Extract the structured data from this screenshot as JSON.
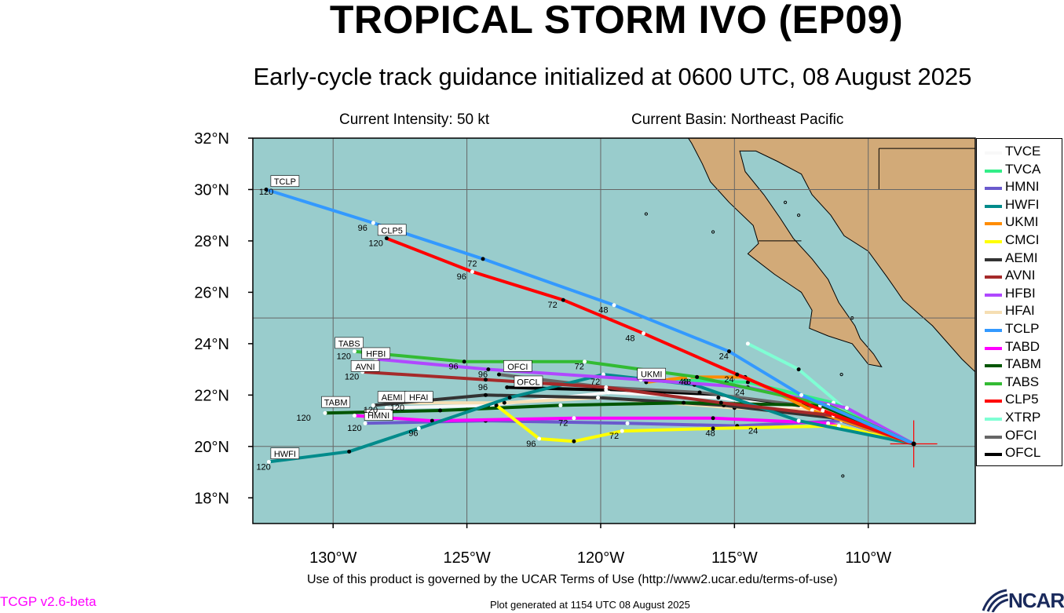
{
  "title": "TROPICAL STORM IVO (EP09)",
  "subtitle": "Early-cycle track guidance initialized at 0600 UTC, 08 August 2025",
  "intensity": "Current Intensity: 50 kt",
  "basin": "Current Basin: Northeast Pacific",
  "footer_note": "Use of this product is governed by the UCAR Terms of Use (http://www2.ucar.edu/terms-of-use)",
  "version": "TCGP v2.6-beta",
  "generated": "Plot generated at 1154 UTC   08 August 2025",
  "logo_text": "NCAR",
  "map": {
    "lon_range": [
      -133,
      -106
    ],
    "lat_range": [
      17,
      32
    ],
    "lat_ticks": [
      {
        "v": 18,
        "t": "18°N"
      },
      {
        "v": 20,
        "t": "20°N"
      },
      {
        "v": 22,
        "t": "22°N"
      },
      {
        "v": 24,
        "t": "24°N"
      },
      {
        "v": 26,
        "t": "26°N"
      },
      {
        "v": 28,
        "t": "28°N"
      },
      {
        "v": 30,
        "t": "30°N"
      },
      {
        "v": 32,
        "t": "32°N"
      }
    ],
    "lon_ticks": [
      {
        "v": -130,
        "t": "130°W"
      },
      {
        "v": -125,
        "t": "125°W"
      },
      {
        "v": -120,
        "t": "120°W"
      },
      {
        "v": -115,
        "t": "115°W"
      },
      {
        "v": -110,
        "t": "110°W"
      }
    ],
    "grid_lons": [
      -130,
      -125,
      -120,
      -115,
      -110
    ],
    "grid_lats": [
      20,
      25,
      30
    ],
    "ocean_color": "#99cccc",
    "land_color": "#d2aa78",
    "storm_position": [
      -108.3,
      20.1
    ],
    "storm_marker_color": "#ff0000"
  },
  "legend": [
    {
      "name": "TVCE",
      "color": "#f8f8f8"
    },
    {
      "name": "TVCA",
      "color": "#33ee88"
    },
    {
      "name": "HMNI",
      "color": "#6a5acd"
    },
    {
      "name": "HWFI",
      "color": "#008b8b"
    },
    {
      "name": "UKMI",
      "color": "#ff8c00"
    },
    {
      "name": "CMCI",
      "color": "#ffff00"
    },
    {
      "name": "AEMI",
      "color": "#333333"
    },
    {
      "name": "AVNI",
      "color": "#a52a2a"
    },
    {
      "name": "HFBI",
      "color": "#b048ff"
    },
    {
      "name": "HFAI",
      "color": "#f5deb3"
    },
    {
      "name": "TCLP",
      "color": "#3399ff"
    },
    {
      "name": "TABD",
      "color": "#ff00ff"
    },
    {
      "name": "TABM",
      "color": "#005500"
    },
    {
      "name": "TABS",
      "color": "#33bb33"
    },
    {
      "name": "CLP5",
      "color": "#ff0000"
    },
    {
      "name": "XTRP",
      "color": "#7fffd4"
    },
    {
      "name": "OFCI",
      "color": "#666666"
    },
    {
      "name": "OFCL",
      "color": "#000000"
    }
  ],
  "tracks": [
    {
      "name": "TCLP",
      "color": "#3399ff",
      "points": [
        [
          -108.3,
          20.1
        ],
        [
          -112.5,
          22.0
        ],
        [
          -115.2,
          23.7
        ],
        [
          -119.5,
          25.5
        ],
        [
          -124.4,
          27.3
        ],
        [
          -128.5,
          28.7
        ],
        [
          -132.5,
          30.0
        ]
      ],
      "label": "TCLP",
      "label_pos": [
        -131.8,
        30.3
      ],
      "hours": [
        {
          "t": "24",
          "pos": [
            -115.4,
            23.4
          ]
        },
        {
          "t": "48",
          "pos": [
            -119.9,
            25.2
          ]
        },
        {
          "t": "72",
          "pos": [
            -124.8,
            27.0
          ]
        },
        {
          "t": "96",
          "pos": [
            -128.9,
            28.4
          ]
        },
        {
          "t": "120",
          "pos": [
            -132.5,
            29.8
          ]
        }
      ]
    },
    {
      "name": "CLP5",
      "color": "#ff0000",
      "points": [
        [
          -108.3,
          20.1
        ],
        [
          -111.7,
          21.4
        ],
        [
          -114.9,
          22.8
        ],
        [
          -118.4,
          24.4
        ],
        [
          -121.4,
          25.7
        ],
        [
          -124.8,
          26.8
        ],
        [
          -128.0,
          28.1
        ]
      ],
      "label": "CLP5",
      "label_pos": [
        -127.8,
        28.4
      ],
      "hours": [
        {
          "t": "24",
          "pos": [
            -115.2,
            22.5
          ]
        },
        {
          "t": "48",
          "pos": [
            -118.9,
            24.1
          ]
        },
        {
          "t": "72",
          "pos": [
            -121.8,
            25.4
          ]
        },
        {
          "t": "96",
          "pos": [
            -125.2,
            26.5
          ]
        },
        {
          "t": "120",
          "pos": [
            -128.4,
            27.8
          ]
        }
      ]
    },
    {
      "name": "TABS",
      "color": "#33bb33",
      "points": [
        [
          -108.3,
          20.1
        ],
        [
          -111.5,
          21.6
        ],
        [
          -116.4,
          22.7
        ],
        [
          -120.6,
          23.3
        ],
        [
          -125.1,
          23.3
        ],
        [
          -129.2,
          23.7
        ]
      ],
      "label": "TABS",
      "label_pos": [
        -129.4,
        24.0
      ],
      "hours": [
        {
          "t": "48",
          "pos": [
            -116.8,
            22.4
          ]
        },
        {
          "t": "72",
          "pos": [
            -120.8,
            23.0
          ]
        },
        {
          "t": "96",
          "pos": [
            -125.5,
            23.0
          ]
        },
        {
          "t": "120",
          "pos": [
            -129.6,
            23.4
          ]
        }
      ]
    },
    {
      "name": "HFBI",
      "color": "#b048ff",
      "points": [
        [
          -108.3,
          20.1
        ],
        [
          -110.8,
          21.5
        ],
        [
          -114.5,
          22.3
        ],
        [
          -118.5,
          22.6
        ],
        [
          -124.2,
          23.0
        ],
        [
          -128.4,
          23.4
        ]
      ],
      "label": "HFBI",
      "label_pos": [
        -128.4,
        23.6
      ],
      "hours": [
        {
          "t": "24",
          "pos": [
            -114.8,
            22.0
          ]
        },
        {
          "t": "96",
          "pos": [
            -124.4,
            22.7
          ]
        },
        {
          "t": "120",
          "pos": [
            -128.8,
            23.1
          ]
        }
      ]
    },
    {
      "name": "AVNI",
      "color": "#a52a2a",
      "points": [
        [
          -108.3,
          20.1
        ],
        [
          -111.3,
          21.2
        ],
        [
          -115.5,
          21.7
        ],
        [
          -119.8,
          22.3
        ],
        [
          -124.3,
          22.6
        ],
        [
          -128.9,
          22.9
        ]
      ],
      "label": "AVNI",
      "label_pos": [
        -128.8,
        23.1
      ],
      "hours": [
        {
          "t": "120",
          "pos": [
            -129.3,
            22.6
          ]
        }
      ]
    },
    {
      "name": "UKMI",
      "color": "#ff8c00",
      "points": [
        [
          -108.3,
          20.1
        ],
        [
          -112.1,
          21.4
        ],
        [
          -114.6,
          22.7
        ],
        [
          -116.7,
          22.7
        ],
        [
          -118.3,
          22.5
        ]
      ],
      "label": "UKMI",
      "label_pos": [
        -118.1,
        22.8
      ],
      "hours": [
        {
          "t": "48",
          "pos": [
            -116.9,
            22.4
          ]
        }
      ]
    },
    {
      "name": "HWFI",
      "color": "#008b8b",
      "points": [
        [
          -108.3,
          20.1
        ],
        [
          -112.6,
          21.0
        ],
        [
          -116.5,
          22.4
        ],
        [
          -119.9,
          22.8
        ],
        [
          -123.4,
          21.9
        ],
        [
          -126.8,
          20.7
        ],
        [
          -129.4,
          19.8
        ],
        [
          -132.4,
          19.4
        ]
      ],
      "label": "HWFI",
      "label_pos": [
        -131.8,
        19.7
      ],
      "hours": [
        {
          "t": "96",
          "pos": [
            -127.0,
            20.4
          ]
        },
        {
          "t": "120",
          "pos": [
            -132.6,
            19.1
          ]
        }
      ]
    },
    {
      "name": "CMCI",
      "color": "#ffff00",
      "points": [
        [
          -108.3,
          20.1
        ],
        [
          -111.1,
          20.8
        ],
        [
          -115.8,
          20.7
        ],
        [
          -119.2,
          20.6
        ],
        [
          -121.0,
          20.2
        ],
        [
          -122.3,
          20.3
        ],
        [
          -123.9,
          21.6
        ]
      ],
      "label": "",
      "label_pos": [
        0,
        0
      ],
      "hours": [
        {
          "t": "48",
          "pos": [
            -115.9,
            20.4
          ]
        },
        {
          "t": "72",
          "pos": [
            -119.5,
            20.3
          ]
        },
        {
          "t": "96",
          "pos": [
            -122.6,
            20.0
          ]
        }
      ]
    },
    {
      "name": "TABD",
      "color": "#ff00ff",
      "points": [
        [
          -108.3,
          20.1
        ],
        [
          -111.5,
          20.9
        ],
        [
          -115.8,
          21.1
        ],
        [
          -121.0,
          21.1
        ],
        [
          -126.3,
          21.0
        ],
        [
          -129.2,
          21.2
        ]
      ],
      "label": "",
      "label_pos": [
        0,
        0
      ],
      "hours": [
        {
          "t": "72",
          "pos": [
            -121.4,
            20.8
          ]
        }
      ]
    },
    {
      "name": "HMNI",
      "color": "#6a5acd",
      "points": [
        [
          -108.3,
          20.1
        ],
        [
          -111.0,
          21.0
        ],
        [
          -114.9,
          20.8
        ],
        [
          -119.0,
          20.9
        ],
        [
          -124.3,
          21.0
        ],
        [
          -128.8,
          20.9
        ]
      ],
      "label": "HMNI",
      "label_pos": [
        -128.3,
        21.2
      ],
      "hours": [
        {
          "t": "24",
          "pos": [
            -114.3,
            20.5
          ]
        },
        {
          "t": "120",
          "pos": [
            -129.2,
            20.6
          ]
        }
      ]
    },
    {
      "name": "TABM",
      "color": "#005500",
      "points": [
        [
          -108.3,
          20.1
        ],
        [
          -111.8,
          21.6
        ],
        [
          -116.9,
          21.7
        ],
        [
          -121.5,
          21.6
        ],
        [
          -126.0,
          21.4
        ],
        [
          -130.3,
          21.3
        ]
      ],
      "label": "TABM",
      "label_pos": [
        -129.9,
        21.7
      ],
      "hours": [
        {
          "t": "120",
          "pos": [
            -131.1,
            21.0
          ]
        }
      ]
    },
    {
      "name": "AEMI",
      "color": "#333333",
      "points": [
        [
          -108.3,
          20.1
        ],
        [
          -111.2,
          21.1
        ],
        [
          -115.4,
          21.6
        ],
        [
          -120.1,
          21.9
        ],
        [
          -124.3,
          22.0
        ],
        [
          -128.5,
          21.6
        ]
      ],
      "label": "AEMI",
      "label_pos": [
        -127.8,
        21.9
      ],
      "hours": [
        {
          "t": "120",
          "pos": [
            -128.6,
            21.3
          ]
        }
      ]
    },
    {
      "name": "HFAI",
      "color": "#f5deb3",
      "points": [
        [
          -108.3,
          20.1
        ],
        [
          -111.1,
          21.4
        ],
        [
          -115.0,
          21.5
        ],
        [
          -120.0,
          21.9
        ],
        [
          -123.6,
          21.7
        ],
        [
          -127.6,
          21.7
        ]
      ],
      "label": "HFAI",
      "label_pos": [
        -126.8,
        21.9
      ],
      "hours": [
        {
          "t": "120",
          "pos": [
            -127.6,
            21.4
          ]
        }
      ]
    },
    {
      "name": "TVCE",
      "color": "#f8f8f8",
      "points": [
        [
          -108.3,
          20.1
        ],
        [
          -111.4,
          21.3
        ],
        [
          -115.6,
          21.9
        ],
        [
          -119.7,
          22.1
        ],
        [
          -124.2,
          21.6
        ],
        [
          -128.0,
          21.5
        ]
      ],
      "label": "",
      "label_pos": [
        0,
        0
      ],
      "hours": []
    },
    {
      "name": "OFCL",
      "color": "#000000",
      "points": [
        [
          -108.3,
          20.1
        ],
        [
          -112.5,
          21.5
        ],
        [
          -116.3,
          22.0
        ],
        [
          -119.8,
          22.2
        ],
        [
          -123.5,
          22.3
        ]
      ],
      "label": "OFCL",
      "label_pos": [
        -122.7,
        22.5
      ],
      "hours": [
        {
          "t": "72",
          "pos": [
            -120.2,
            22.4
          ]
        }
      ]
    },
    {
      "name": "OFCI",
      "color": "#666666",
      "points": [
        [
          -108.3,
          20.1
        ],
        [
          -112.5,
          21.6
        ],
        [
          -116.3,
          22.1
        ],
        [
          -119.8,
          22.3
        ],
        [
          -123.8,
          22.8
        ]
      ],
      "label": "OFCI",
      "label_pos": [
        -123.1,
        23.1
      ],
      "hours": [
        {
          "t": "96",
          "pos": [
            -124.4,
            22.2
          ]
        }
      ]
    },
    {
      "name": "TVCA",
      "color": "#33ee88",
      "points": [
        [
          -108.3,
          20.1
        ],
        [
          -111.3,
          21.7
        ],
        [
          -114.5,
          22.5
        ],
        [
          -117.5,
          22.6
        ]
      ],
      "label": "",
      "label_pos": [
        0,
        0
      ],
      "hours": []
    },
    {
      "name": "XTRP",
      "color": "#7fffd4",
      "points": [
        [
          -108.3,
          20.1
        ],
        [
          -110.9,
          21.5
        ],
        [
          -112.6,
          23.0
        ],
        [
          -114.5,
          24.0
        ]
      ],
      "label": "",
      "label_pos": [
        0,
        0
      ],
      "hours": []
    }
  ]
}
